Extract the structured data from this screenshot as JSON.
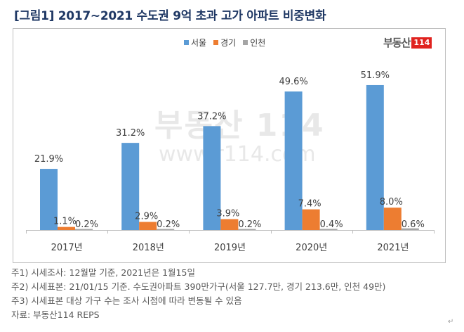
{
  "title": "[그림1] 2017~2021 수도권 9억 초과 고가 아파트 비중변화",
  "logo": {
    "text": "부동산",
    "badge": "114"
  },
  "watermark": {
    "line1": "부동산 114",
    "line2": "www.r114.com"
  },
  "colors": {
    "seoul": "#5b9bd5",
    "gyeonggi": "#ed7d31",
    "incheon": "#a5a5a5"
  },
  "chart_data": {
    "type": "bar",
    "title": "2017~2021 수도권 9억 초과 고가 아파트 비중변화",
    "xlabel": "",
    "ylabel": "",
    "categories": [
      "2017년",
      "2018년",
      "2019년",
      "2020년",
      "2021년"
    ],
    "series": [
      {
        "name": "서울",
        "values": [
          21.9,
          31.2,
          37.2,
          49.6,
          51.9
        ]
      },
      {
        "name": "경기",
        "values": [
          1.1,
          2.9,
          3.9,
          7.4,
          8.0
        ]
      },
      {
        "name": "인천",
        "values": [
          0.2,
          0.2,
          0.2,
          0.4,
          0.6
        ]
      }
    ],
    "data_labels": [
      [
        "21.9%",
        "31.2%",
        "37.2%",
        "49.6%",
        "51.9%"
      ],
      [
        "1.1%",
        "2.9%",
        "3.9%",
        "7.4%",
        "8.0%"
      ],
      [
        "0.2%",
        "0.2%",
        "0.2%",
        "0.4%",
        "0.6%"
      ]
    ],
    "unit": "%",
    "ylim": [
      0,
      55
    ],
    "grid": false,
    "legend": "top-center"
  },
  "notes": [
    "주1) 시세조사: 12월말 기준, 2021년은 1월15일",
    "주2) 시세표본: 21/01/15 기준. 수도권아파트 390만가구(서울 127.7만, 경기 213.6만, 인천 49만)",
    "주3) 시세표본 대상 가구 수는 조사 시점에 따라 변동될 수 있음",
    "자료: 부동산114 REPS"
  ],
  "return_mark": "↵"
}
